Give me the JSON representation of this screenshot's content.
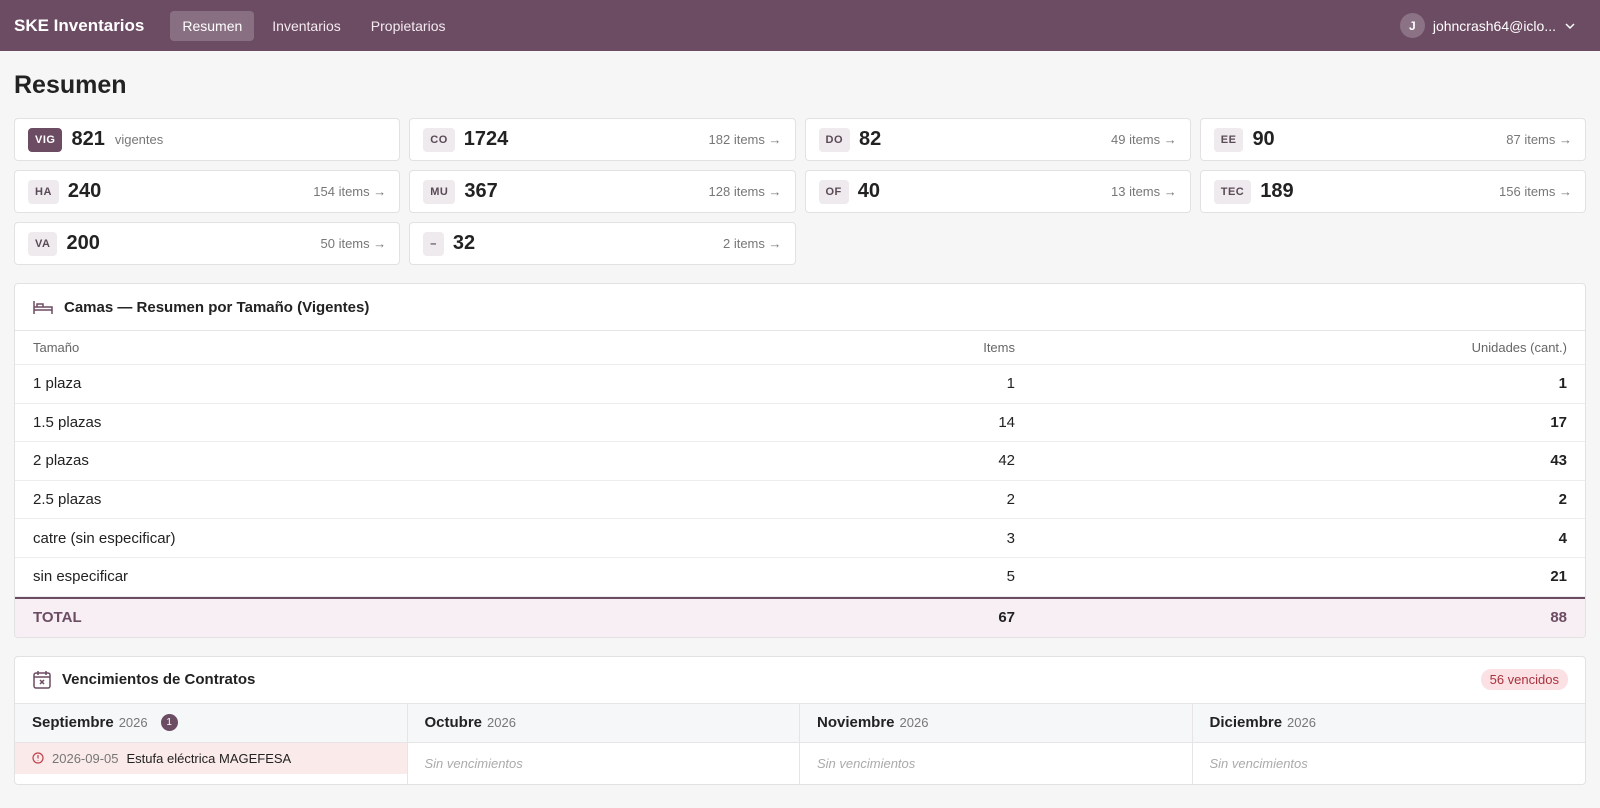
{
  "nav": {
    "brand": "SKE Inventarios",
    "links": [
      "Resumen",
      "Inventarios",
      "Propietarios"
    ],
    "user_initial": "J",
    "user_email": "johncrash64@iclo..."
  },
  "page_title": "Resumen",
  "stats": [
    {
      "code": "VIG",
      "total": 821,
      "note": "vigentes"
    },
    {
      "code": "CO",
      "total": 1724,
      "items": "182 items →"
    },
    {
      "code": "DO",
      "total": 82,
      "items": "49 items →"
    },
    {
      "code": "EE",
      "total": 90,
      "items": "87 items →"
    },
    {
      "code": "HA",
      "total": 240,
      "items": "154 items →"
    },
    {
      "code": "MU",
      "total": 367,
      "items": "128 items →"
    },
    {
      "code": "OF",
      "total": 40,
      "items": "13 items →"
    },
    {
      "code": "TEC",
      "total": 189,
      "items": "156 items →"
    },
    {
      "code": "VA",
      "total": 200,
      "items": "50 items →"
    },
    {
      "code": "–",
      "total": 32,
      "items": "2 items →"
    }
  ],
  "beds": {
    "title": "Camas — Resumen por Tamaño (Vigentes)",
    "columns": [
      "Tamaño",
      "Items",
      "Unidades (cant.)"
    ],
    "rows": [
      [
        "1 plaza",
        1,
        1
      ],
      [
        "1.5 plazas",
        14,
        17
      ],
      [
        "2 plazas",
        42,
        43
      ],
      [
        "2.5 plazas",
        2,
        2
      ],
      [
        "catre (sin especificar)",
        3,
        4
      ],
      [
        "sin especificar",
        5,
        21
      ]
    ],
    "total": [
      "TOTAL",
      67,
      88
    ]
  },
  "expirations": {
    "title": "Vencimientos de Contratos",
    "badge": "56 vencidos",
    "months": [
      {
        "name": "Septiembre",
        "year": 2026,
        "count": 1,
        "entries": [
          {
            "date": "2026-09-05",
            "label": "Estufa eléctrica MAGEFESA"
          }
        ]
      },
      {
        "name": "Octubre",
        "year": 2026,
        "empty": "Sin vencimientos"
      },
      {
        "name": "Noviembre",
        "year": 2026,
        "empty": "Sin vencimientos"
      },
      {
        "name": "Diciembre",
        "year": 2026,
        "empty": "Sin vencimientos"
      }
    ]
  }
}
